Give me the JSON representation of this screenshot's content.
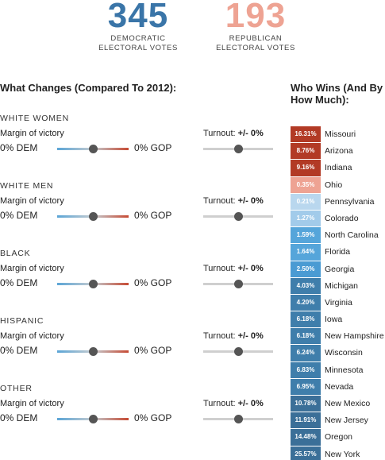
{
  "tally": {
    "dem": {
      "value": "345",
      "line1": "DEMOCRATIC",
      "line2": "ELECTORAL VOTES"
    },
    "gop": {
      "value": "193",
      "line1": "REPUBLICAN",
      "line2": "ELECTORAL VOTES"
    }
  },
  "changes_title": "What Changes (Compared To 2012):",
  "wins_title": "Who Wins (And By How Much):",
  "groups": [
    {
      "name": "WHITE WOMEN",
      "margin_label": "Margin of victory",
      "dem_text": "0% DEM",
      "gop_text": "0% GOP",
      "turnout_label": "Turnout:",
      "turnout_value": "+/- 0%",
      "margin_position": 0.5,
      "turnout_position": 0.5
    },
    {
      "name": "WHITE MEN",
      "margin_label": "Margin of victory",
      "dem_text": "0% DEM",
      "gop_text": "0% GOP",
      "turnout_label": "Turnout:",
      "turnout_value": "+/- 0%",
      "margin_position": 0.5,
      "turnout_position": 0.5
    },
    {
      "name": "BLACK",
      "margin_label": "Margin of victory",
      "dem_text": "0% DEM",
      "gop_text": "0% GOP",
      "turnout_label": "Turnout:",
      "turnout_value": "+/- 0%",
      "margin_position": 0.5,
      "turnout_position": 0.5
    },
    {
      "name": "HISPANIC",
      "margin_label": "Margin of victory",
      "dem_text": "0% DEM",
      "gop_text": "0% GOP",
      "turnout_label": "Turnout:",
      "turnout_value": "+/- 0%",
      "margin_position": 0.5,
      "turnout_position": 0.5
    },
    {
      "name": "OTHER",
      "margin_label": "Margin of victory",
      "dem_text": "0% DEM",
      "gop_text": "0% GOP",
      "turnout_label": "Turnout:",
      "turnout_value": "+/- 0%",
      "margin_position": 0.5,
      "turnout_position": 0.5
    }
  ],
  "states": [
    {
      "margin": "16.31%",
      "name": "Missouri",
      "color": "#b23a25"
    },
    {
      "margin": "8.76%",
      "name": "Arizona",
      "color": "#b23a25"
    },
    {
      "margin": "9.16%",
      "name": "Indiana",
      "color": "#b23a25"
    },
    {
      "margin": "0.35%",
      "name": "Ohio",
      "color": "#eea393"
    },
    {
      "margin": "0.21%",
      "name": "Pennsylvania",
      "color": "#b9d7ee"
    },
    {
      "margin": "1.27%",
      "name": "Colorado",
      "color": "#a2cbea"
    },
    {
      "margin": "1.59%",
      "name": "North Carolina",
      "color": "#55a5da"
    },
    {
      "margin": "1.64%",
      "name": "Florida",
      "color": "#55a5da"
    },
    {
      "margin": "2.50%",
      "name": "Georgia",
      "color": "#4a9bd3"
    },
    {
      "margin": "4.03%",
      "name": "Michigan",
      "color": "#3f7eab"
    },
    {
      "margin": "4.20%",
      "name": "Virginia",
      "color": "#3f7eab"
    },
    {
      "margin": "6.18%",
      "name": "Iowa",
      "color": "#3f7eab"
    },
    {
      "margin": "6.18%",
      "name": "New Hampshire",
      "color": "#3f7eab"
    },
    {
      "margin": "6.24%",
      "name": "Wisconsin",
      "color": "#3f7eab"
    },
    {
      "margin": "6.83%",
      "name": "Minnesota",
      "color": "#3f7eab"
    },
    {
      "margin": "6.95%",
      "name": "Nevada",
      "color": "#3f7eab"
    },
    {
      "margin": "10.78%",
      "name": "New Mexico",
      "color": "#3b6f98"
    },
    {
      "margin": "11.91%",
      "name": "New Jersey",
      "color": "#3b6f98"
    },
    {
      "margin": "14.48%",
      "name": "Oregon",
      "color": "#3b6f98"
    },
    {
      "margin": "25.57%",
      "name": "New York",
      "color": "#3b6f98"
    }
  ]
}
